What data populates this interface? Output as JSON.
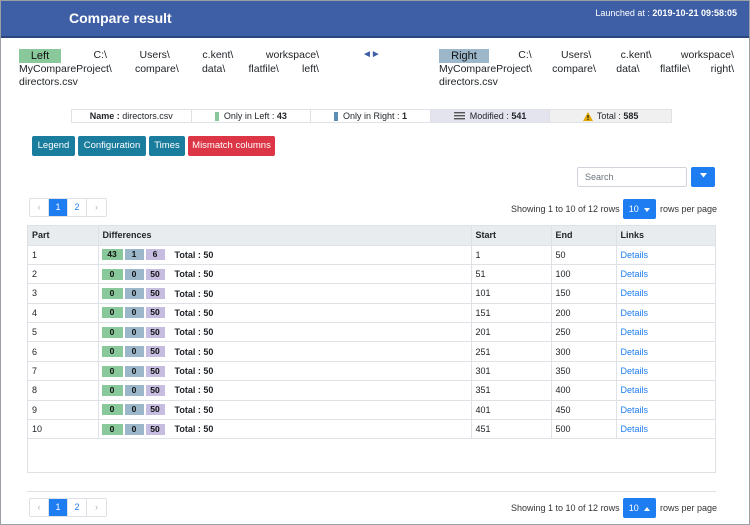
{
  "header": {
    "title": "Compare result",
    "launched_label": "Launched at :",
    "launched_value": "2019-10-21 09:58:05"
  },
  "left": {
    "tag": "Left",
    "line1": [
      "C:\\",
      "Users\\",
      "c.kent\\",
      "workspace\\"
    ],
    "line2": [
      "MyCompareProject\\",
      "compare\\",
      "data\\",
      "flatfile\\",
      "left\\"
    ],
    "line3": "directors.csv"
  },
  "right": {
    "tag": "Right",
    "line1": [
      "C:\\",
      "Users\\",
      "c.kent\\",
      "workspace\\"
    ],
    "line2": [
      "MyCompareProject\\",
      "compare\\",
      "data\\",
      "flatfile\\",
      "right\\"
    ],
    "line3": "directors.csv"
  },
  "swap_icon": "◄►",
  "summary": {
    "name_label": "Name :",
    "name_value": "directors.csv",
    "only_left_label": "Only in Left :",
    "only_left_value": "43",
    "only_right_label": "Only in Right :",
    "only_right_value": "1",
    "modified_label": "Modified :",
    "modified_value": "541",
    "total_label": "Total :",
    "total_value": "585"
  },
  "buttons": {
    "legend": "Legend",
    "configuration": "Configuration",
    "times": "Times",
    "mismatch": "Mismatch columns"
  },
  "search": {
    "placeholder": "Search"
  },
  "pager": {
    "prev": "‹",
    "page1": "1",
    "page2": "2",
    "next": "›"
  },
  "showing": "Showing 1 to 10 of 12 rows",
  "rows_per_page_value": "10",
  "rows_per_page_label": "rows per page",
  "table": {
    "headers": [
      "Part",
      "Differences",
      "Start",
      "End",
      "Links"
    ],
    "total_prefix": "Total : ",
    "link_text": "Details",
    "rows": [
      {
        "part": "1",
        "left": "43",
        "right": "1",
        "mod": "6",
        "total": "50",
        "start": "1",
        "end": "50"
      },
      {
        "part": "2",
        "left": "0",
        "right": "0",
        "mod": "50",
        "total": "50",
        "start": "51",
        "end": "100"
      },
      {
        "part": "3",
        "left": "0",
        "right": "0",
        "mod": "50",
        "total": "50",
        "start": "101",
        "end": "150"
      },
      {
        "part": "4",
        "left": "0",
        "right": "0",
        "mod": "50",
        "total": "50",
        "start": "151",
        "end": "200"
      },
      {
        "part": "5",
        "left": "0",
        "right": "0",
        "mod": "50",
        "total": "50",
        "start": "201",
        "end": "250"
      },
      {
        "part": "6",
        "left": "0",
        "right": "0",
        "mod": "50",
        "total": "50",
        "start": "251",
        "end": "300"
      },
      {
        "part": "7",
        "left": "0",
        "right": "0",
        "mod": "50",
        "total": "50",
        "start": "301",
        "end": "350"
      },
      {
        "part": "8",
        "left": "0",
        "right": "0",
        "mod": "50",
        "total": "50",
        "start": "351",
        "end": "400"
      },
      {
        "part": "9",
        "left": "0",
        "right": "0",
        "mod": "50",
        "total": "50",
        "start": "401",
        "end": "450"
      },
      {
        "part": "10",
        "left": "0",
        "right": "0",
        "mod": "50",
        "total": "50",
        "start": "451",
        "end": "500"
      }
    ]
  },
  "colors": {
    "header_bg": "#3e5fa6",
    "left": "#88c89a",
    "right": "#9bb7c9",
    "modified": "#c7bde0",
    "primary": "#1e7df0",
    "danger": "#dc3545",
    "info_button": "#1a7d9d"
  }
}
